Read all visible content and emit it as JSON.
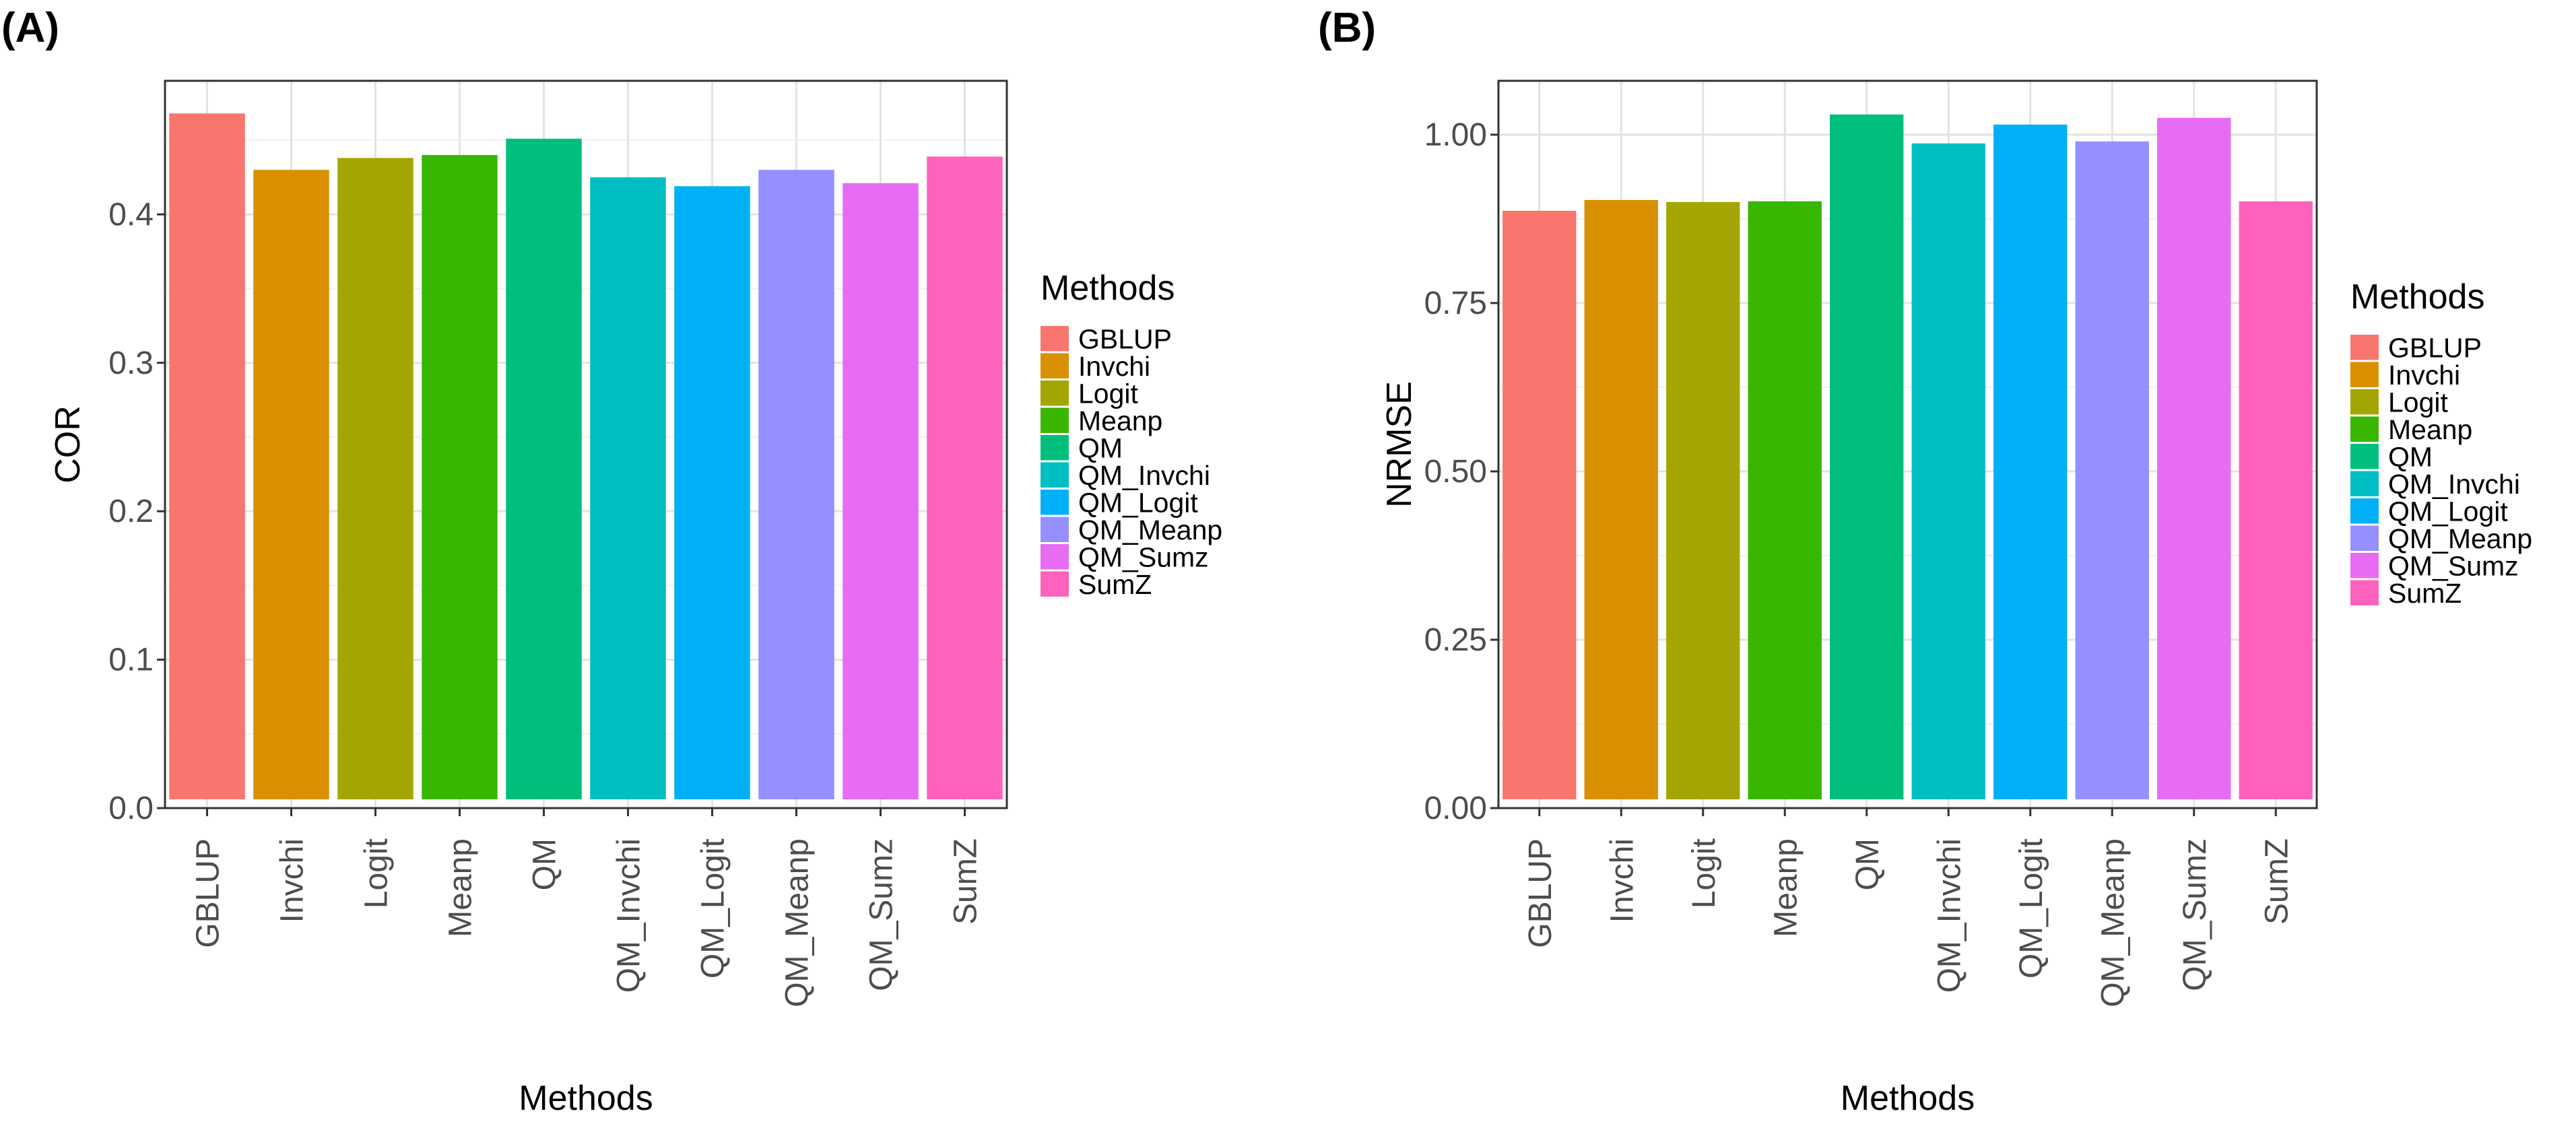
{
  "colors": {
    "GBLUP": "#F8766D",
    "Invchi": "#D89000",
    "Logit": "#A3A500",
    "Meanp": "#39B600",
    "QM": "#00BF7D",
    "QM_Invchi": "#00BFC4",
    "QM_Logit": "#00B0F6",
    "QM_Meanp": "#9590FF",
    "QM_Sumz": "#E76BF3",
    "SumZ": "#FF62BC"
  },
  "chart_data": [
    {
      "type": "bar",
      "panel_label": "(A)",
      "title": "",
      "xlabel": "Methods",
      "ylabel": "COR",
      "categories": [
        "GBLUP",
        "Invchi",
        "Logit",
        "Meanp",
        "QM",
        "QM_Invchi",
        "QM_Logit",
        "QM_Meanp",
        "QM_Sumz",
        "SumZ"
      ],
      "values": [
        0.468,
        0.43,
        0.438,
        0.44,
        0.451,
        0.425,
        0.419,
        0.43,
        0.421,
        0.439
      ],
      "ylim": [
        0,
        0.49
      ],
      "yticks": [
        0.0,
        0.1,
        0.2,
        0.3,
        0.4
      ],
      "ytick_labels": [
        "0.0",
        "0.1",
        "0.2",
        "0.3",
        "0.4"
      ],
      "grid": true,
      "legend": {
        "title": "Methods",
        "placement": "right",
        "entries": [
          "GBLUP",
          "Invchi",
          "Logit",
          "Meanp",
          "QM",
          "QM_Invchi",
          "QM_Logit",
          "QM_Meanp",
          "QM_Sumz",
          "SumZ"
        ]
      }
    },
    {
      "type": "bar",
      "panel_label": "(B)",
      "title": "",
      "xlabel": "Methods",
      "ylabel": "NRMSE",
      "categories": [
        "GBLUP",
        "Invchi",
        "Logit",
        "Meanp",
        "QM",
        "QM_Invchi",
        "QM_Logit",
        "QM_Meanp",
        "QM_Sumz",
        "SumZ"
      ],
      "values": [
        0.887,
        0.903,
        0.9,
        0.901,
        1.03,
        0.987,
        1.015,
        0.99,
        1.025,
        0.901
      ],
      "ylim": [
        0,
        1.08
      ],
      "yticks": [
        0.0,
        0.25,
        0.5,
        0.75,
        1.0
      ],
      "ytick_labels": [
        "0.00",
        "0.25",
        "0.50",
        "0.75",
        "1.00"
      ],
      "grid": true,
      "legend": {
        "title": "Methods",
        "placement": "right",
        "entries": [
          "GBLUP",
          "Invchi",
          "Logit",
          "Meanp",
          "QM",
          "QM_Invchi",
          "QM_Logit",
          "QM_Meanp",
          "QM_Sumz",
          "SumZ"
        ]
      }
    }
  ]
}
